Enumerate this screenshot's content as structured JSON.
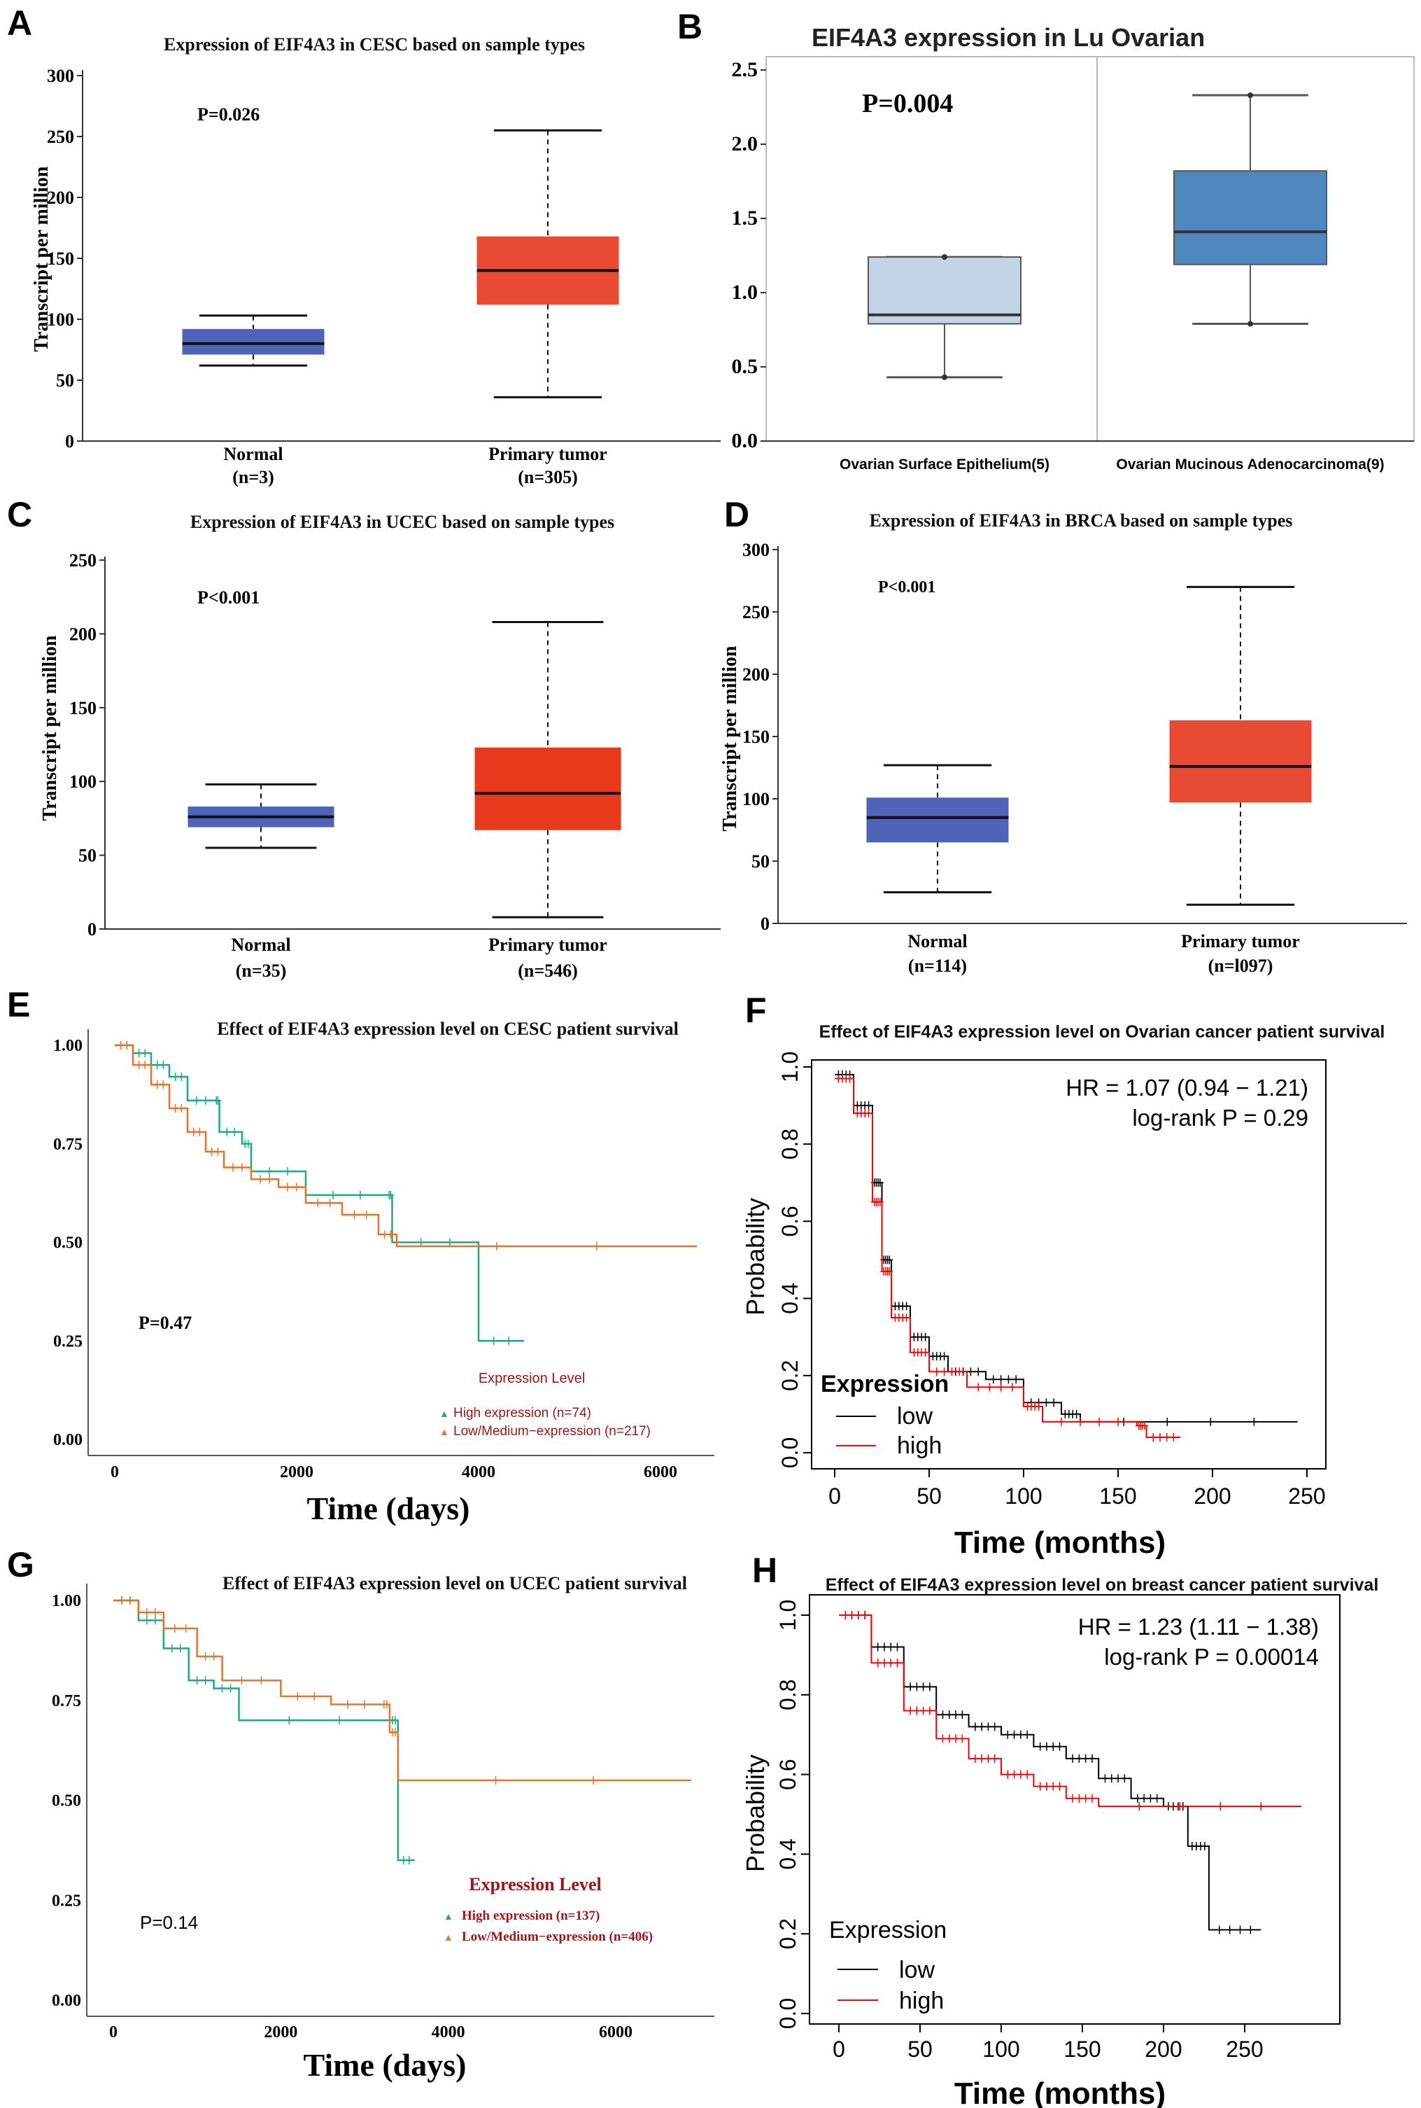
{
  "figure": {
    "panel_labels": [
      "A",
      "B",
      "C",
      "D",
      "E",
      "F",
      "G",
      "H"
    ]
  },
  "chart_data": [
    {
      "panel": "A",
      "type": "boxplot",
      "title": "Expression of EIF4A3 in CESC based on sample types",
      "ylabel": "Transcript per million",
      "ylim": [
        0,
        300
      ],
      "yticks": [
        "0",
        "50",
        "100",
        "150",
        "200",
        "250",
        "300"
      ],
      "annotation": "P=0.026",
      "categories": [
        [
          "Normal",
          "(n=3)"
        ],
        [
          "Primary tumor",
          "(n=305)"
        ]
      ],
      "boxes": [
        {
          "min": 62,
          "q1": 71,
          "median": 80,
          "q3": 92,
          "max": 103,
          "color": "#4f63b8"
        },
        {
          "min": 36,
          "q1": 112,
          "median": 140,
          "q3": 168,
          "max": 255,
          "color": "#e84a33"
        }
      ]
    },
    {
      "panel": "B",
      "type": "boxplot",
      "title": "EIF4A3 expression in Lu Ovarian",
      "ylim": [
        0,
        2.5
      ],
      "yticks": [
        "0.0",
        "0.5",
        "1.0",
        "1.5",
        "2.0",
        "2.5"
      ],
      "annotation": "P=0.004",
      "categories": [
        [
          "Ovarian Surface Epithelium(5)"
        ],
        [
          "Ovarian Mucinous Adenocarcinoma(9)"
        ]
      ],
      "boxes": [
        {
          "min": 0.43,
          "q1": 0.79,
          "median": 0.85,
          "q3": 1.24,
          "max": 1.24,
          "color": "#c3d4e6"
        },
        {
          "min": 0.79,
          "q1": 1.19,
          "median": 1.41,
          "q3": 1.82,
          "max": 2.33,
          "color": "#4e88bf"
        }
      ]
    },
    {
      "panel": "C",
      "type": "boxplot",
      "title": "Expression of EIF4A3 in UCEC based on sample types",
      "ylabel": "Transcript per million",
      "ylim": [
        0,
        250
      ],
      "yticks": [
        "0",
        "50",
        "100",
        "150",
        "200",
        "250"
      ],
      "annotation": "P<0.001",
      "categories": [
        [
          "Normal",
          "(n=35)"
        ],
        [
          "Primary tumor",
          "(n=546)"
        ]
      ],
      "boxes": [
        {
          "min": 55,
          "q1": 69,
          "median": 76,
          "q3": 83,
          "max": 98,
          "color": "#4f63b8"
        },
        {
          "min": 8,
          "q1": 67,
          "median": 92,
          "q3": 123,
          "max": 208,
          "color": "#e8391c"
        }
      ]
    },
    {
      "panel": "D",
      "type": "boxplot",
      "title": "Expression of EIF4A3 in BRCA based on sample types",
      "ylabel": "Transcript per million",
      "ylim": [
        0,
        300
      ],
      "yticks": [
        "0",
        "50",
        "100",
        "150",
        "200",
        "250",
        "300"
      ],
      "annotation": "P<0.001",
      "categories": [
        [
          "Normal",
          "(n=114)"
        ],
        [
          "Primary tumor",
          "(n=l097)"
        ]
      ],
      "boxes": [
        {
          "min": 25,
          "q1": 65,
          "median": 85,
          "q3": 101,
          "max": 127,
          "color": "#4f63b8"
        },
        {
          "min": 15,
          "q1": 97,
          "median": 126,
          "q3": 163,
          "max": 270,
          "color": "#e84a33"
        }
      ]
    },
    {
      "panel": "E",
      "type": "line",
      "title": "Effect of EIF4A3 expression level on CESC patient survival",
      "xlabel": "Time (days)",
      "xlim": [
        0,
        6600
      ],
      "ylim": [
        0,
        1
      ],
      "xticks": [
        "0",
        "2000",
        "4000",
        "6000"
      ],
      "yticks": [
        "0.00",
        "0.25",
        "0.50",
        "0.75",
        "1.00"
      ],
      "annotation": "P=0.47",
      "legend_title": "Expression Level",
      "series": [
        {
          "name": "High expression (n=74)",
          "color": "#1fa884",
          "x": [
            0,
            200,
            400,
            600,
            800,
            1100,
            1150,
            1400,
            1500,
            2100,
            3000,
            3050,
            4000,
            4500
          ],
          "y": [
            1,
            0.98,
            0.95,
            0.92,
            0.86,
            0.86,
            0.78,
            0.75,
            0.68,
            0.62,
            0.62,
            0.5,
            0.25,
            0.25
          ]
        },
        {
          "name": "Low/Medium−expression (n=217)",
          "color": "#e8732a",
          "x": [
            0,
            200,
            400,
            600,
            800,
            1000,
            1200,
            1500,
            1800,
            2100,
            2500,
            2900,
            3100,
            6400
          ],
          "y": [
            1,
            0.95,
            0.9,
            0.84,
            0.78,
            0.73,
            0.69,
            0.66,
            0.64,
            0.6,
            0.57,
            0.52,
            0.49,
            0.49
          ]
        }
      ]
    },
    {
      "panel": "F",
      "type": "line",
      "title": "Effect of EIF4A3 expression level on Ovarian cancer patient survival",
      "xlabel": "Time (months)",
      "ylabel": "Probability",
      "xlim": [
        0,
        250
      ],
      "ylim": [
        0,
        1
      ],
      "xticks": [
        "0",
        "50",
        "100",
        "150",
        "200",
        "250"
      ],
      "yticks": [
        "0.0",
        "0.2",
        "0.4",
        "0.6",
        "0.8",
        "1.0"
      ],
      "annotation": [
        "HR = 1.07 (0.94 − 1.21)",
        "log-rank P = 0.29"
      ],
      "legend_title": "Expression",
      "series": [
        {
          "name": "low",
          "color": "#000000",
          "x": [
            0,
            10,
            20,
            25,
            30,
            40,
            50,
            60,
            80,
            100,
            120,
            130,
            245
          ],
          "y": [
            0.98,
            0.9,
            0.7,
            0.5,
            0.38,
            0.3,
            0.25,
            0.21,
            0.19,
            0.13,
            0.1,
            0.08,
            0.08
          ]
        },
        {
          "name": "high",
          "color": "#ff0000",
          "x": [
            0,
            10,
            20,
            25,
            30,
            40,
            50,
            70,
            100,
            110,
            160,
            165,
            183
          ],
          "y": [
            0.97,
            0.88,
            0.65,
            0.47,
            0.35,
            0.26,
            0.21,
            0.17,
            0.12,
            0.08,
            0.07,
            0.04,
            0.04
          ]
        }
      ]
    },
    {
      "panel": "G",
      "type": "line",
      "title": "Effect of EIF4A3 expression level on UCEC patient survival",
      "xlabel": "Time (days)",
      "xlim": [
        0,
        7000
      ],
      "ylim": [
        0,
        1
      ],
      "xticks": [
        "0",
        "2000",
        "4000",
        "6000"
      ],
      "yticks": [
        "0.00",
        "0.25",
        "0.50",
        "0.75",
        "1.00"
      ],
      "annotation": "P=0.14",
      "legend_title": "Expression Level",
      "series": [
        {
          "name": "High expression (n=137)",
          "color": "#1fa884",
          "x": [
            0,
            300,
            600,
            900,
            1200,
            1500,
            3300,
            3400,
            3600
          ],
          "y": [
            1,
            0.95,
            0.88,
            0.8,
            0.78,
            0.7,
            0.7,
            0.35,
            0.35
          ]
        },
        {
          "name": "Low/Medium−expression (n=406)",
          "color": "#e8732a",
          "x": [
            0,
            300,
            600,
            1000,
            1300,
            2000,
            2600,
            3200,
            3300,
            3400,
            6900
          ],
          "y": [
            1,
            0.97,
            0.93,
            0.86,
            0.8,
            0.76,
            0.74,
            0.74,
            0.67,
            0.55,
            0.55
          ]
        }
      ]
    },
    {
      "panel": "H",
      "type": "line",
      "title": "Effect of EIF4A3 expression level on breast cancer patient survival",
      "xlabel": "Time (months)",
      "ylabel": "Probability",
      "xlim": [
        0,
        290
      ],
      "ylim": [
        0,
        1
      ],
      "xticks": [
        "0",
        "50",
        "100",
        "150",
        "200",
        "250"
      ],
      "yticks": [
        "0.0",
        "0.2",
        "0.4",
        "0.6",
        "0.8",
        "1.0"
      ],
      "annotation": [
        "HR = 1.23 (1.11 − 1.38)",
        "log-rank P = 0.00014"
      ],
      "legend_title": "Expression",
      "series": [
        {
          "name": "low",
          "color": "#000000",
          "x": [
            0,
            20,
            40,
            60,
            80,
            100,
            120,
            140,
            160,
            180,
            200,
            215,
            228,
            260
          ],
          "y": [
            1,
            0.92,
            0.82,
            0.75,
            0.72,
            0.7,
            0.67,
            0.64,
            0.59,
            0.54,
            0.52,
            0.42,
            0.21,
            0.21
          ]
        },
        {
          "name": "high",
          "color": "#ff0000",
          "x": [
            0,
            20,
            40,
            60,
            80,
            100,
            120,
            140,
            160,
            285
          ],
          "y": [
            1,
            0.88,
            0.76,
            0.69,
            0.64,
            0.6,
            0.57,
            0.54,
            0.52,
            0.52
          ]
        }
      ]
    }
  ]
}
